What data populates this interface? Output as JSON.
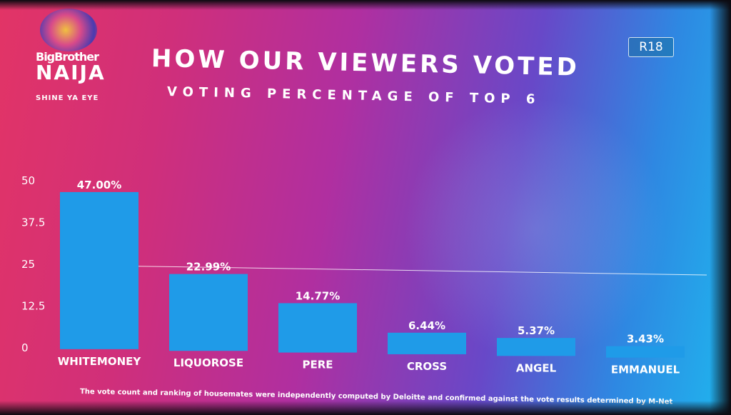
{
  "logo": {
    "line1": "BigBrother",
    "line2": "NAIJA",
    "line3": "SHINE YA EYE"
  },
  "rating_badge": "R18",
  "footnote": "The vote count and ranking of housemates were independently computed by Deloitte and confirmed against the vote results determined by M-Net",
  "colors": {
    "bar": "#1f9be8",
    "text": "#ffffff",
    "gridline": "#ffffff"
  },
  "chart_data": {
    "type": "bar",
    "title": "HOW OUR VIEWERS VOTED",
    "subtitle": "VOTING PERCENTAGE OF TOP 6",
    "categories": [
      "WHITEMONEY",
      "LIQUOROSE",
      "PERE",
      "CROSS",
      "ANGEL",
      "EMMANUEL"
    ],
    "values": [
      47.0,
      22.99,
      14.77,
      6.44,
      5.37,
      3.43
    ],
    "data_labels": [
      "47.00%",
      "22.99%",
      "14.77%",
      "6.44%",
      "5.37%",
      "3.43%"
    ],
    "yticks": [
      "0",
      "12.5",
      "25",
      "37.5",
      "50"
    ],
    "ylim": [
      0,
      50
    ],
    "xlabel": "",
    "ylabel": "",
    "grid": true,
    "legend": "none"
  }
}
